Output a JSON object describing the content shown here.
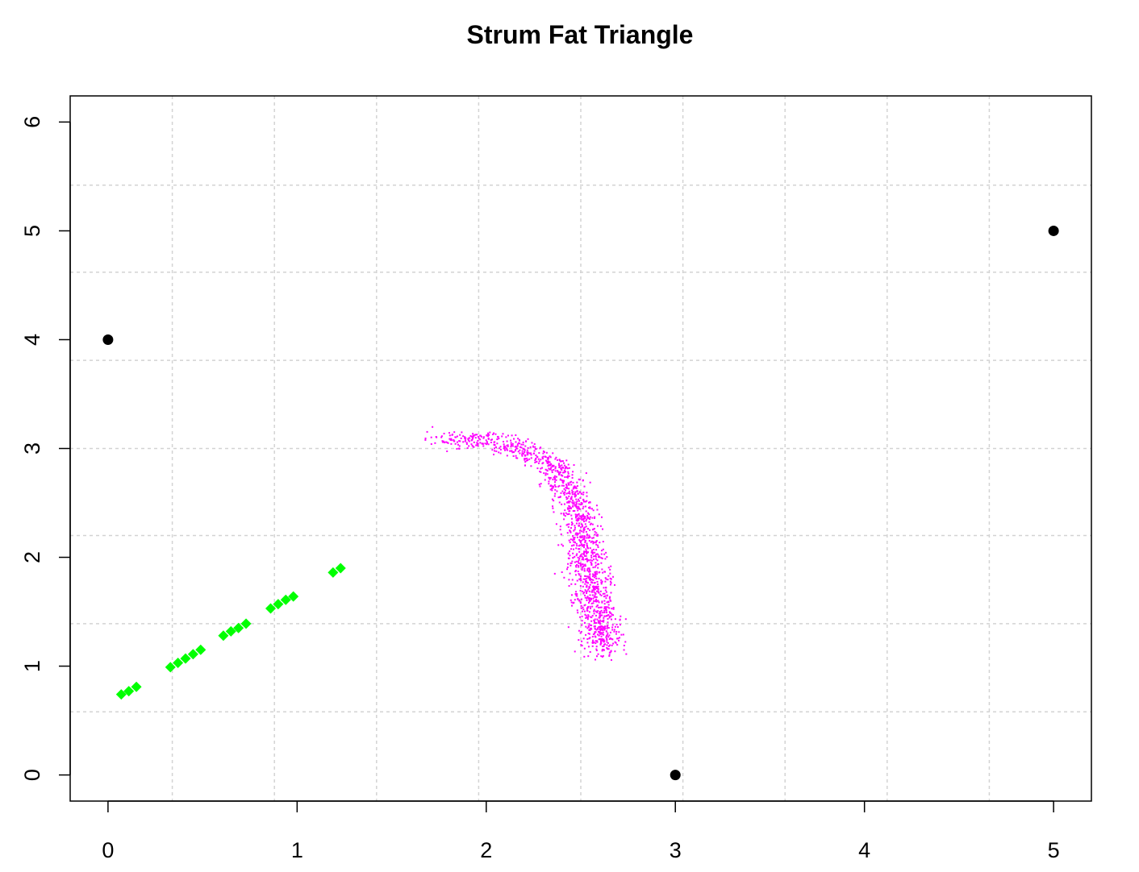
{
  "chart_data": {
    "type": "scatter",
    "title": "Strum Fat Triangle",
    "xlabel": "",
    "ylabel": "",
    "xlim": [
      -0.2,
      5.2
    ],
    "ylim": [
      -0.24,
      6.24
    ],
    "x_ticks": [
      "0",
      "1",
      "2",
      "3",
      "4",
      "5"
    ],
    "y_ticks": [
      "0",
      "1",
      "2",
      "3",
      "4",
      "5",
      "6"
    ],
    "grid": true,
    "grid_x": [
      0.34,
      0.88,
      1.42,
      1.96,
      2.5,
      3.04,
      3.58,
      4.12,
      4.66
    ],
    "grid_y": [
      0.58,
      1.39,
      2.2,
      3.0,
      3.81,
      4.62,
      5.42
    ],
    "series": [
      {
        "marker": "circle",
        "color": "#000000",
        "points": [
          [
            0,
            4
          ],
          [
            3,
            0
          ],
          [
            5,
            5
          ]
        ]
      },
      {
        "marker": "diamond",
        "color": "#00ff00",
        "points": [
          [
            0.07,
            0.74
          ],
          [
            0.11,
            0.77
          ],
          [
            0.15,
            0.81
          ],
          [
            0.33,
            0.99
          ],
          [
            0.37,
            1.03
          ],
          [
            0.41,
            1.07
          ],
          [
            0.45,
            1.11
          ],
          [
            0.49,
            1.15
          ],
          [
            0.61,
            1.28
          ],
          [
            0.65,
            1.32
          ],
          [
            0.69,
            1.35
          ],
          [
            0.73,
            1.39
          ],
          [
            0.86,
            1.53
          ],
          [
            0.9,
            1.57
          ],
          [
            0.94,
            1.61
          ],
          [
            0.98,
            1.64
          ],
          [
            1.19,
            1.86
          ],
          [
            1.23,
            1.9
          ]
        ]
      },
      {
        "marker": "pixel",
        "color": "#ff00ff",
        "description_points": "dense cloud of ~1500 small points forming a curved band",
        "band_path": [
          [
            1.7,
            3.1
          ],
          [
            2.0,
            3.08
          ],
          [
            2.2,
            3.0
          ],
          [
            2.35,
            2.85
          ],
          [
            2.45,
            2.6
          ],
          [
            2.5,
            2.3
          ],
          [
            2.52,
            2.0
          ],
          [
            2.56,
            1.7
          ],
          [
            2.6,
            1.4
          ],
          [
            2.62,
            1.15
          ]
        ],
        "point_count": 1500
      }
    ]
  }
}
